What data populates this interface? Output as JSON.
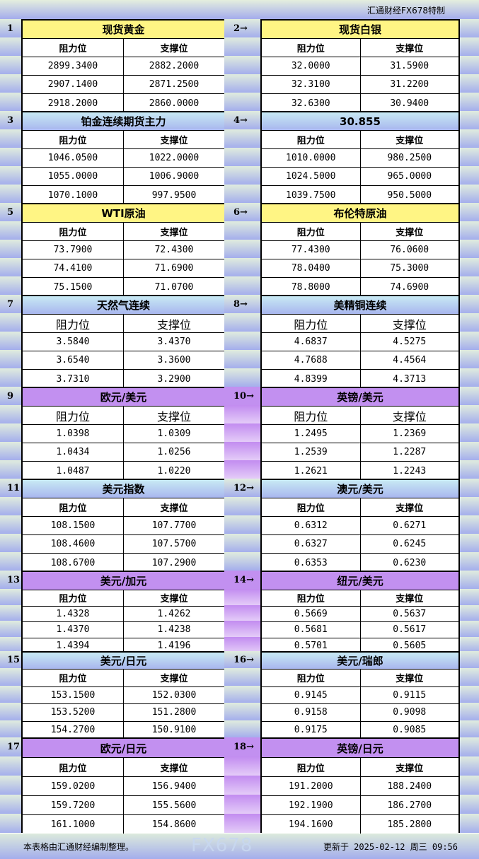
{
  "brand": "汇通财经FX678特制",
  "col_headers": {
    "resistance": "阻力位",
    "support": "支撑位"
  },
  "sections": [
    {
      "num": "1",
      "title": "现货黄金",
      "theme": "yellow",
      "rows": [
        [
          "2899.3400",
          "2882.2000"
        ],
        [
          "2907.1400",
          "2871.2500"
        ],
        [
          "2918.2000",
          "2860.0000"
        ]
      ]
    },
    {
      "num": "2→",
      "title": "现货白银",
      "theme": "yellow",
      "rows": [
        [
          "32.0000",
          "31.5900"
        ],
        [
          "32.3100",
          "31.2200"
        ],
        [
          "32.6300",
          "30.9400"
        ]
      ]
    },
    {
      "num": "3",
      "title": "铂金连续期货主力",
      "theme": "blue",
      "rows": [
        [
          "1046.0500",
          "1022.0000"
        ],
        [
          "1055.0000",
          "1006.9000"
        ],
        [
          "1070.1000",
          "997.9500"
        ]
      ]
    },
    {
      "num": "4→",
      "title": "30.855",
      "theme": "blue",
      "rows": [
        [
          "1010.0000",
          "980.2500"
        ],
        [
          "1024.5000",
          "965.0000"
        ],
        [
          "1039.7500",
          "950.5000"
        ]
      ]
    },
    {
      "num": "5",
      "title": "WTI原油",
      "theme": "yellow",
      "rows": [
        [
          "73.7900",
          "72.4300"
        ],
        [
          "74.4100",
          "71.6900"
        ],
        [
          "75.1500",
          "71.0700"
        ]
      ]
    },
    {
      "num": "6→",
      "title": "布伦特原油",
      "theme": "yellow",
      "rows": [
        [
          "77.4300",
          "76.0600"
        ],
        [
          "78.0400",
          "75.3000"
        ],
        [
          "78.8000",
          "74.6900"
        ]
      ]
    },
    {
      "num": "7",
      "title": "天然气连续",
      "theme": "blue",
      "rows": [
        [
          "3.5840",
          "3.4370"
        ],
        [
          "3.6540",
          "3.3600"
        ],
        [
          "3.7310",
          "3.2900"
        ]
      ]
    },
    {
      "num": "8→",
      "title": "美精铜连续",
      "theme": "blue",
      "rows": [
        [
          "4.6837",
          "4.5275"
        ],
        [
          "4.7688",
          "4.4564"
        ],
        [
          "4.8399",
          "4.3713"
        ]
      ]
    },
    {
      "num": "9",
      "title": "欧元/美元",
      "theme": "purple",
      "rows": [
        [
          "1.0398",
          "1.0309"
        ],
        [
          "1.0434",
          "1.0256"
        ],
        [
          "1.0487",
          "1.0220"
        ]
      ]
    },
    {
      "num": "10→",
      "title": "英镑/美元",
      "theme": "purple",
      "rows": [
        [
          "1.2495",
          "1.2369"
        ],
        [
          "1.2539",
          "1.2287"
        ],
        [
          "1.2621",
          "1.2243"
        ]
      ]
    },
    {
      "num": "11",
      "title": "美元指数",
      "theme": "blue",
      "rows": [
        [
          "108.1500",
          "107.7700"
        ],
        [
          "108.4600",
          "107.5700"
        ],
        [
          "108.6700",
          "107.2900"
        ]
      ]
    },
    {
      "num": "12→",
      "title": "澳元/美元",
      "theme": "blue",
      "rows": [
        [
          "0.6312",
          "0.6271"
        ],
        [
          "0.6327",
          "0.6245"
        ],
        [
          "0.6353",
          "0.6230"
        ]
      ]
    },
    {
      "num": "13",
      "title": "美元/加元",
      "theme": "purple",
      "rows": [
        [
          "1.4328",
          "1.4262"
        ],
        [
          "1.4370",
          "1.4238"
        ],
        [
          "1.4394",
          "1.4196"
        ]
      ]
    },
    {
      "num": "14→",
      "title": "纽元/美元",
      "theme": "purple",
      "rows": [
        [
          "0.5669",
          "0.5637"
        ],
        [
          "0.5681",
          "0.5617"
        ],
        [
          "0.5701",
          "0.5605"
        ]
      ]
    },
    {
      "num": "15",
      "title": "美元/日元",
      "theme": "blue",
      "rows": [
        [
          "153.1500",
          "152.0300"
        ],
        [
          "153.5200",
          "151.2800"
        ],
        [
          "154.2700",
          "150.9100"
        ]
      ]
    },
    {
      "num": "16→",
      "title": "美元/瑞郎",
      "theme": "blue",
      "rows": [
        [
          "0.9145",
          "0.9115"
        ],
        [
          "0.9158",
          "0.9098"
        ],
        [
          "0.9175",
          "0.9085"
        ]
      ]
    },
    {
      "num": "17",
      "title": "欧元/日元",
      "theme": "purple",
      "rows": [
        [
          "159.0200",
          "156.9400"
        ],
        [
          "159.7200",
          "155.5600"
        ],
        [
          "161.1000",
          "154.8600"
        ]
      ]
    },
    {
      "num": "18→",
      "title": "英镑/日元",
      "theme": "purple",
      "rows": [
        [
          "191.2000",
          "188.2400"
        ],
        [
          "192.1900",
          "186.2700"
        ],
        [
          "194.1600",
          "185.2800"
        ]
      ]
    }
  ],
  "footer": {
    "note": "本表格由汇通财经编制整理。",
    "updated": "更新于 2025-02-12 周三 09:56"
  },
  "watermark": "FX678"
}
